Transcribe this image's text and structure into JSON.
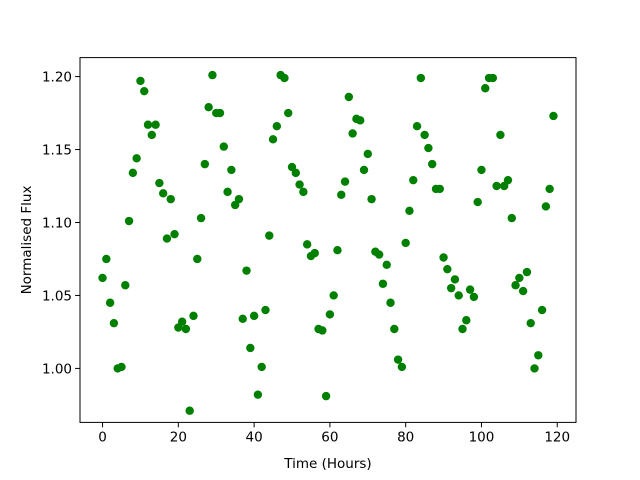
{
  "chart_data": {
    "type": "scatter",
    "xlabel": "Time (Hours)",
    "ylabel": "Normalised Flux",
    "color": "green",
    "x": [
      0,
      1,
      2,
      3,
      4,
      5,
      6,
      7,
      8,
      9,
      10,
      11,
      12,
      13,
      14,
      15,
      16,
      17,
      18,
      19,
      20,
      21,
      22,
      23,
      24,
      25,
      26,
      27,
      28,
      29,
      30,
      31,
      32,
      33,
      34,
      35,
      36,
      37,
      38,
      39,
      40,
      41,
      42,
      43,
      44,
      45,
      46,
      47,
      48,
      49,
      50,
      51,
      52,
      53,
      54,
      55,
      56,
      57,
      58,
      59,
      60,
      61,
      62,
      63,
      64,
      65,
      66,
      67,
      68,
      69,
      70,
      71,
      72,
      73,
      74,
      75,
      76,
      77,
      78,
      79,
      80,
      81,
      82,
      83,
      84,
      85,
      86,
      87,
      88,
      89,
      90,
      91,
      92,
      93,
      94,
      95,
      96,
      97,
      98,
      99,
      100,
      101,
      102,
      103,
      104,
      105,
      106,
      107,
      108,
      109,
      110,
      111,
      112,
      113,
      114,
      115,
      116,
      117,
      118,
      119
    ],
    "values": [
      1.062,
      1.075,
      1.045,
      1.031,
      1.0,
      1.001,
      1.057,
      1.101,
      1.134,
      1.144,
      1.197,
      1.19,
      1.167,
      1.16,
      1.167,
      1.127,
      1.12,
      1.089,
      1.116,
      1.092,
      1.028,
      1.032,
      1.027,
      0.971,
      1.036,
      1.075,
      1.103,
      1.14,
      1.179,
      1.201,
      1.175,
      1.175,
      1.152,
      1.121,
      1.136,
      1.112,
      1.116,
      1.034,
      1.067,
      1.014,
      1.036,
      0.982,
      1.001,
      1.04,
      1.091,
      1.157,
      1.166,
      1.201,
      1.199,
      1.175,
      1.138,
      1.134,
      1.126,
      1.121,
      1.085,
      1.077,
      1.079,
      1.027,
      1.026,
      0.981,
      1.037,
      1.05,
      1.081,
      1.119,
      1.128,
      1.186,
      1.161,
      1.171,
      1.17,
      1.136,
      1.147,
      1.116,
      1.08,
      1.078,
      1.058,
      1.071,
      1.045,
      1.027,
      1.006,
      1.001,
      1.086,
      1.108,
      1.129,
      1.166,
      1.199,
      1.16,
      1.151,
      1.14,
      1.123,
      1.123,
      1.076,
      1.068,
      1.055,
      1.061,
      1.05,
      1.027,
      1.033,
      1.054,
      1.049,
      1.114,
      1.136,
      1.192,
      1.199,
      1.199,
      1.125,
      1.16,
      1.125,
      1.129,
      1.103,
      1.057,
      1.062,
      1.053,
      1.066,
      1.031,
      1.0,
      1.009,
      1.04,
      1.111,
      1.123,
      1.173
    ],
    "xlim": [
      -5.95,
      124.95
    ],
    "xticks": [
      0,
      20,
      40,
      60,
      80,
      100,
      120
    ],
    "ylim": [
      0.963,
      1.213
    ],
    "yticks": [
      {
        "value": 1.0,
        "label": "1.00"
      },
      {
        "value": 1.05,
        "label": "1.05"
      },
      {
        "value": 1.1,
        "label": "1.10"
      },
      {
        "value": 1.15,
        "label": "1.15"
      },
      {
        "value": 1.2,
        "label": "1.20"
      }
    ]
  }
}
